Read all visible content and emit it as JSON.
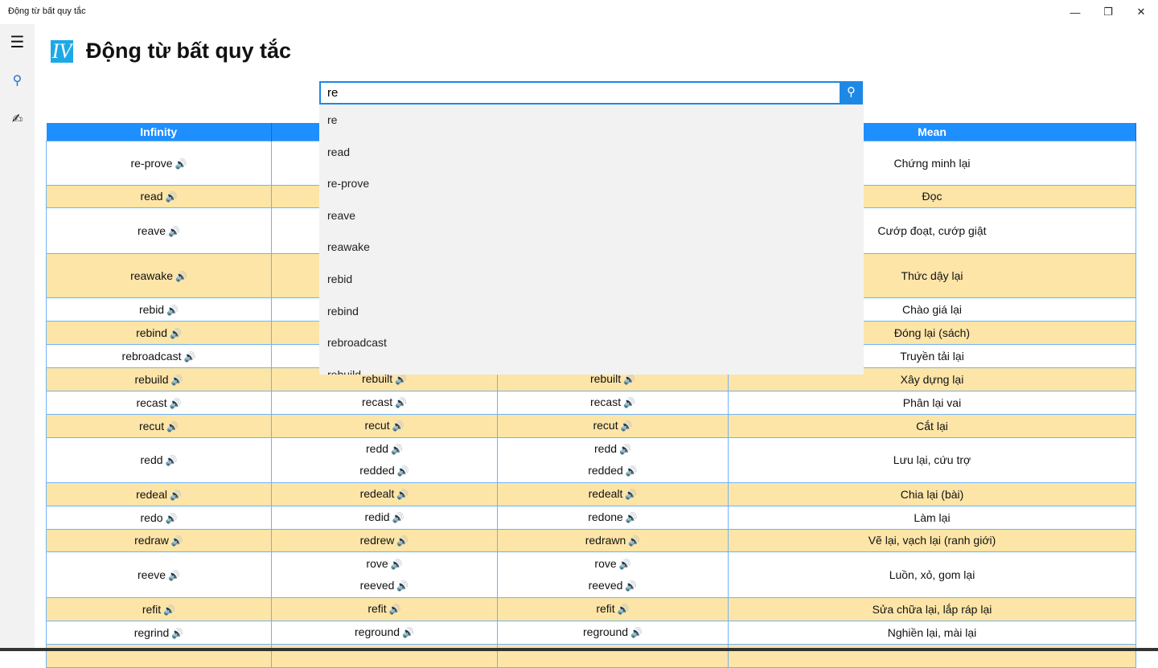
{
  "window": {
    "title": "Động từ bất quy tắc",
    "minimize": "—",
    "restore": "❐",
    "close": "✕"
  },
  "sidebar": {
    "menu_icon": "☰",
    "search_icon": "⚲",
    "edit_icon": "✍"
  },
  "header": {
    "logo": "IV",
    "title": "Động từ bất quy tắc"
  },
  "search": {
    "value": "re",
    "button_icon": "⚲"
  },
  "suggestions": [
    "re",
    "read",
    "re-prove",
    "reave",
    "reawake",
    "rebid",
    "rebind",
    "rebroadcast",
    "rebuild"
  ],
  "table": {
    "headers": [
      "Infinity",
      "",
      "",
      "Mean"
    ],
    "speaker_icon": "🔊",
    "rows": [
      {
        "inf": "re-prove",
        "past": [],
        "pp": [],
        "mean": "Chứng minh lại",
        "h": 55
      },
      {
        "inf": "read",
        "past": [],
        "pp": [],
        "mean": "Đọc",
        "h": 28
      },
      {
        "inf": "reave",
        "past": [],
        "pp": [],
        "mean": "Cướp đoạt, cướp giật",
        "h": 57
      },
      {
        "inf": "reawake",
        "past": [],
        "pp": [],
        "mean": "Thức dậy lại",
        "h": 55
      },
      {
        "inf": "rebid",
        "past": [],
        "pp": [],
        "mean": "Chào giá lại",
        "h": 29
      },
      {
        "inf": "rebind",
        "past": [],
        "pp": [],
        "mean": "Đóng lại (sách)",
        "h": 29
      },
      {
        "inf": "rebroadcast",
        "past": [],
        "pp": [],
        "mean": "Truyền tải lại",
        "h": 29
      },
      {
        "inf": "rebuild",
        "past": [
          "rebuilt"
        ],
        "pp": [
          "rebuilt"
        ],
        "mean": "Xây dựng lại",
        "h": 29
      },
      {
        "inf": "recast",
        "past": [
          "recast"
        ],
        "pp": [
          "recast"
        ],
        "mean": "Phân lại vai",
        "h": 29
      },
      {
        "inf": "recut",
        "past": [
          "recut"
        ],
        "pp": [
          "recut"
        ],
        "mean": "Cắt lại",
        "h": 29
      },
      {
        "inf": "redd",
        "past": [
          "redd",
          "redded"
        ],
        "pp": [
          "redd",
          "redded"
        ],
        "mean": "Lưu lại, cứu trợ",
        "h": 56
      },
      {
        "inf": "redeal",
        "past": [
          "redealt"
        ],
        "pp": [
          "redealt"
        ],
        "mean": "Chia lại (bài)",
        "h": 29
      },
      {
        "inf": "redo",
        "past": [
          "redid"
        ],
        "pp": [
          "redone"
        ],
        "mean": "Làm lại",
        "h": 29
      },
      {
        "inf": "redraw",
        "past": [
          "redrew"
        ],
        "pp": [
          "redrawn"
        ],
        "mean": "Vẽ lại, vạch lại (ranh giới)",
        "h": 28
      },
      {
        "inf": "reeve",
        "past": [
          "rove",
          "reeved"
        ],
        "pp": [
          "rove",
          "reeved"
        ],
        "mean": "Luồn, xỏ, gom lại",
        "h": 57
      },
      {
        "inf": "refit",
        "past": [
          "refit"
        ],
        "pp": [
          "refit"
        ],
        "mean": "Sửa chữa lại, lắp ráp lại",
        "h": 29
      },
      {
        "inf": "regrind",
        "past": [
          "reground"
        ],
        "pp": [
          "reground"
        ],
        "mean": "Nghiền lại, mài lại",
        "h": 29
      }
    ]
  }
}
